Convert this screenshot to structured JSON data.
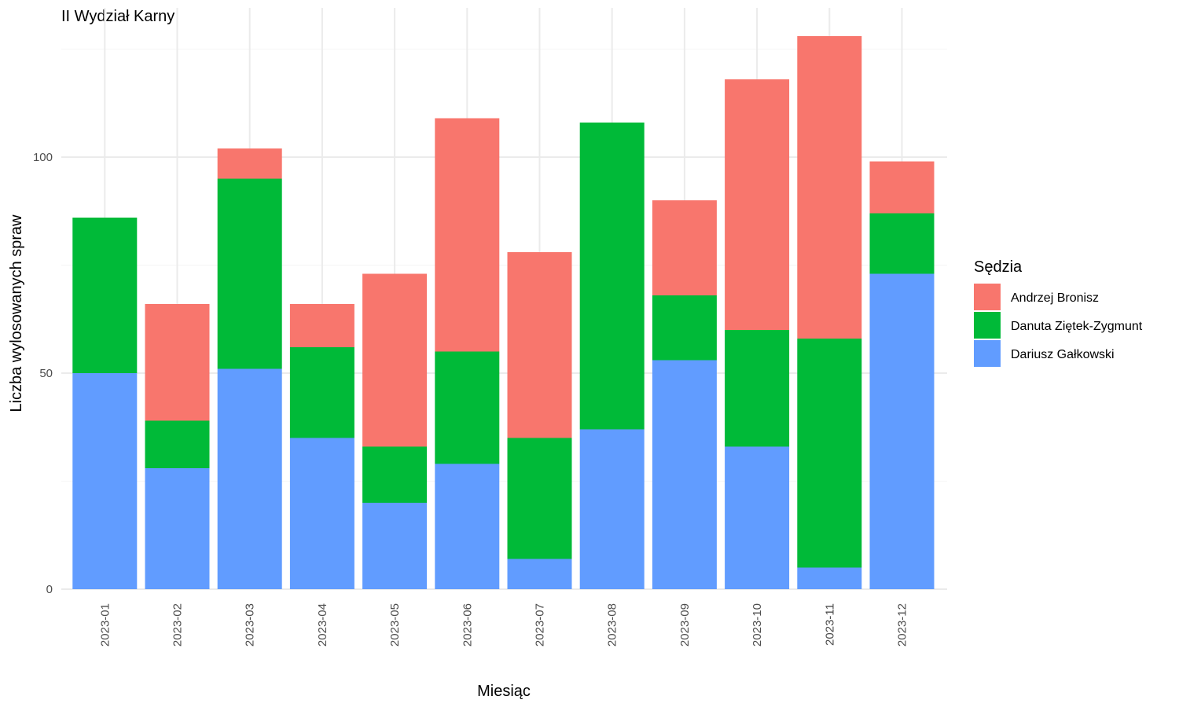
{
  "chart_data": {
    "type": "bar",
    "stacked": true,
    "title": "II Wydział Karny",
    "xlabel": "Miesiąc",
    "ylabel": "Liczba wylosowanych spraw",
    "categories": [
      "2023-01",
      "2023-02",
      "2023-03",
      "2023-04",
      "2023-05",
      "2023-06",
      "2023-07",
      "2023-08",
      "2023-09",
      "2023-10",
      "2023-11",
      "2023-12"
    ],
    "series": [
      {
        "name": "Dariusz Gałkowski",
        "color": "#619CFF",
        "values": [
          50,
          28,
          51,
          35,
          20,
          29,
          7,
          37,
          53,
          33,
          5,
          73
        ]
      },
      {
        "name": "Danuta Ziętek-Zygmunt",
        "color": "#00BA38",
        "values": [
          36,
          11,
          44,
          21,
          13,
          26,
          28,
          71,
          15,
          27,
          53,
          14
        ]
      },
      {
        "name": "Andrzej Bronisz",
        "color": "#F8766D",
        "values": [
          0,
          27,
          7,
          10,
          40,
          54,
          43,
          0,
          22,
          58,
          70,
          12
        ]
      }
    ],
    "ylim": [
      0,
      128
    ],
    "yticks": [
      0,
      50,
      100
    ],
    "grid": true,
    "legend": {
      "title": "Sędzia",
      "position": "right",
      "order": [
        "Andrzej Bronisz",
        "Danuta Ziętek-Zygmunt",
        "Dariusz Gałkowski"
      ]
    }
  }
}
